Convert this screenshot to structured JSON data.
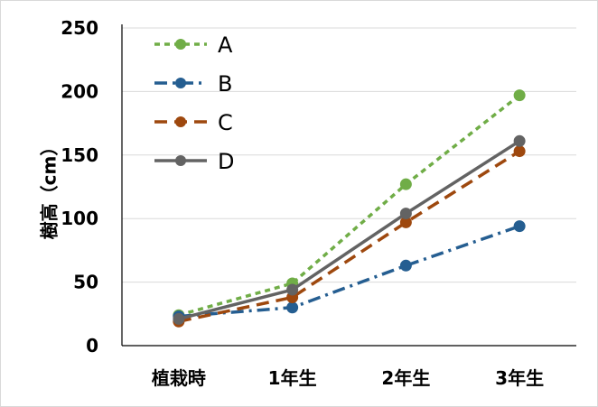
{
  "chart_data": {
    "type": "line",
    "title": "",
    "xlabel": "",
    "ylabel": "樹高（cm）",
    "categories": [
      "植栽時",
      "1年生",
      "2年生",
      "3年生"
    ],
    "ylim": [
      0,
      250
    ],
    "yticks": [
      0,
      50,
      100,
      150,
      200,
      250
    ],
    "grid": true,
    "legend_position": "top-left",
    "series": [
      {
        "name": "A",
        "values": [
          24,
          49,
          127,
          197
        ],
        "color": "#70ad47",
        "dash": "square-dot"
      },
      {
        "name": "B",
        "values": [
          23,
          30,
          63,
          94
        ],
        "color": "#255e91",
        "dash": "dash-dot"
      },
      {
        "name": "C",
        "values": [
          19,
          38,
          97,
          153
        ],
        "color": "#9e480e",
        "dash": "dash"
      },
      {
        "name": "D",
        "values": [
          21,
          44,
          104,
          161
        ],
        "color": "#636363",
        "dash": "solid"
      }
    ]
  }
}
